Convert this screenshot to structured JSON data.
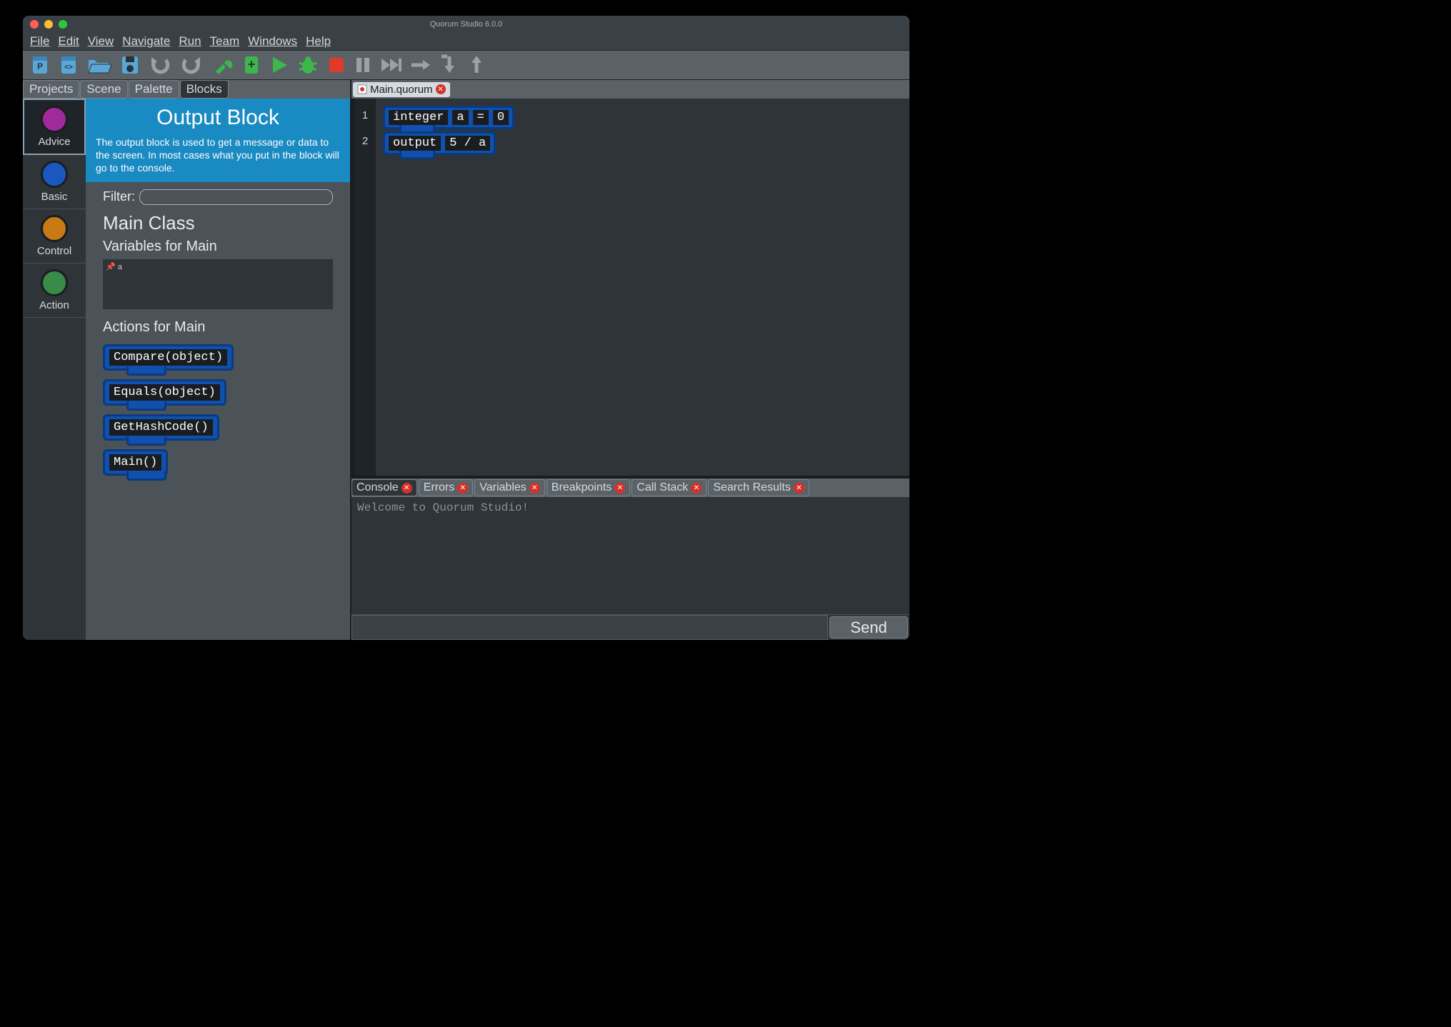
{
  "title": "Quorum Studio 6.0.0",
  "menus": [
    "File",
    "Edit",
    "View",
    "Navigate",
    "Run",
    "Team",
    "Windows",
    "Help"
  ],
  "left_tabs": [
    "Projects",
    "Scene",
    "Palette",
    "Blocks"
  ],
  "left_tab_active": 3,
  "categories": [
    {
      "label": "Advice",
      "color": "#a02a9a",
      "selected": true
    },
    {
      "label": "Basic",
      "color": "#1a58c0",
      "selected": false
    },
    {
      "label": "Control",
      "color": "#c87a14",
      "selected": false
    },
    {
      "label": "Action",
      "color": "#3a8a4a",
      "selected": false
    }
  ],
  "palette": {
    "header_title": "Output Block",
    "header_desc": "The output block is used to get a message or data to the screen. In most cases what you put in the block will go to the console.",
    "filter_label": "Filter:",
    "filter_value": "",
    "class_heading": "Main Class",
    "vars_heading": "Variables for Main",
    "vars": [
      "a"
    ],
    "actions_heading": "Actions for Main",
    "actions": [
      "Compare(object)",
      "Equals(object)",
      "GetHashCode()",
      "Main()"
    ]
  },
  "editor": {
    "tab_file": "Main.quorum",
    "lines": [
      {
        "n": "1",
        "tokens": [
          "integer",
          "a",
          "=",
          "0"
        ]
      },
      {
        "n": "2",
        "tokens": [
          "output",
          "5 / a"
        ]
      }
    ]
  },
  "bottom_tabs": [
    "Console",
    "Errors",
    "Variables",
    "Breakpoints",
    "Call Stack",
    "Search Results"
  ],
  "bottom_tab_active": 0,
  "console_text": "Welcome to Quorum Studio!",
  "send_label": "Send",
  "colors": {
    "toolbar_blue": "#5aa6d8",
    "toolbar_grey": "#9aa2a8",
    "toolbar_green": "#3cb84a",
    "toolbar_red": "#e03a2a",
    "block_bg": "#1051b0",
    "block_border": "#0a3a80"
  }
}
